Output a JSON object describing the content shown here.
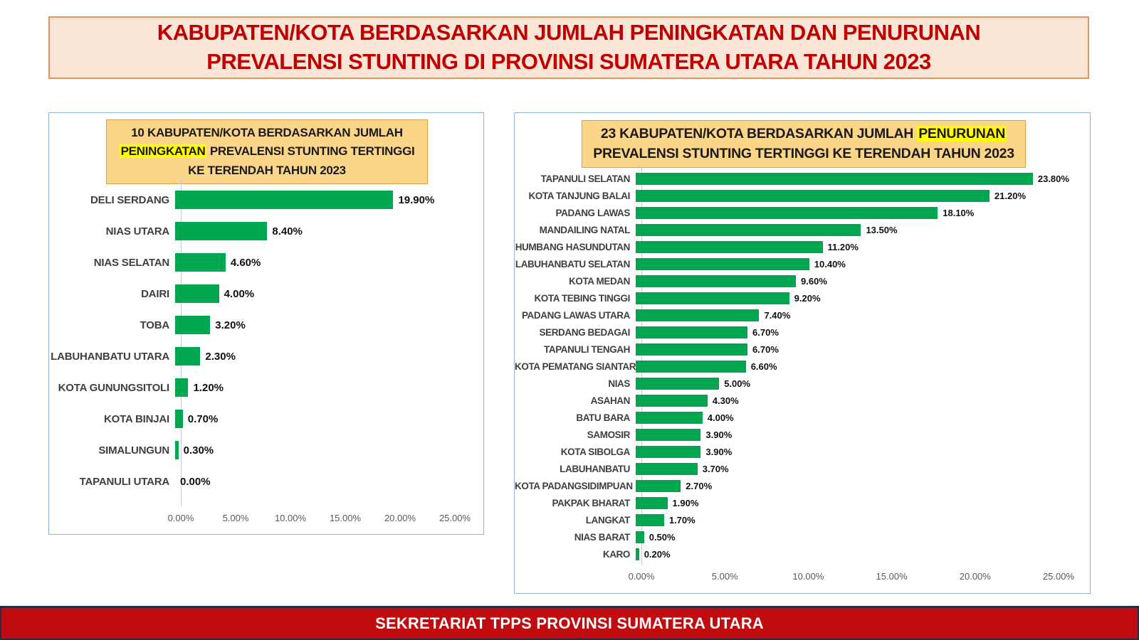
{
  "page": {
    "title": "KABUPATEN/KOTA BERDASARKAN JUMLAH PENINGKATAN DAN PENURUNAN PREVALENSI STUNTING DI PROVINSI SUMATERA UTARA TAHUN 2023",
    "footer": "SEKRETARIAT TPPS PROVINSI SUMATERA UTARA"
  },
  "colors": {
    "bar_green": "#00A650",
    "main_title_text": "#C00000",
    "main_title_bg": "#FBE5D6",
    "main_title_border": "#E0945B",
    "chart_title_bg": "#FBD588",
    "chart_title_border": "#D79E4A",
    "highlight_yellow": "#FFFF00",
    "panel_border": "#8EB4DC",
    "footer_bg": "#C00B0F",
    "footer_border": "#252C48",
    "footer_text": "#FFFFFF"
  },
  "chart_data": [
    {
      "type": "bar",
      "orientation": "horizontal",
      "title": "10 KABUPATEN/KOTA BERDASARKAN JUMLAH PENINGKATAN PREVALENSI STUNTING TERTINGGI KE TERENDAH TAHUN 2023",
      "title_parts": {
        "pre": "10 KABUPATEN/KOTA BERDASARKAN JUMLAH ",
        "highlight": "PENINGKATAN",
        "post": " PREVALENSI STUNTING TERTINGGI KE TERENDAH TAHUN 2023"
      },
      "categories": [
        "DELI SERDANG",
        "NIAS UTARA",
        "NIAS SELATAN",
        "DAIRI",
        "TOBA",
        "LABUHANBATU UTARA",
        "KOTA GUNUNGSITOLI",
        "KOTA BINJAI",
        "SIMALUNGUN",
        "TAPANULI UTARA"
      ],
      "values": [
        19.9,
        8.4,
        4.6,
        4.0,
        3.2,
        2.3,
        1.2,
        0.7,
        0.3,
        0.0
      ],
      "value_labels": [
        "19.90%",
        "8.40%",
        "4.60%",
        "4.00%",
        "3.20%",
        "2.30%",
        "1.20%",
        "0.70%",
        "0.30%",
        "0.00%"
      ],
      "xlim": [
        0,
        25
      ],
      "x_ticks": [
        "0.00%",
        "5.00%",
        "10.00%",
        "15.00%",
        "20.00%",
        "25.00%"
      ],
      "grid": false,
      "legend_position": "none",
      "bar_color": "#00A650"
    },
    {
      "type": "bar",
      "orientation": "horizontal",
      "title": "23 KABUPATEN/KOTA BERDASARKAN JUMLAH PENURUNAN PREVALENSI STUNTING TERTINGGI KE TERENDAH TAHUN 2023",
      "title_parts": {
        "pre": "23 KABUPATEN/KOTA BERDASARKAN JUMLAH ",
        "highlight": "PENURUNAN",
        "post": " PREVALENSI STUNTING TERTINGGI KE TERENDAH TAHUN 2023"
      },
      "categories": [
        "TAPANULI SELATAN",
        "KOTA TANJUNG BALAI",
        "PADANG LAWAS",
        "MANDAILING NATAL",
        "HUMBANG HASUNDUTAN",
        "LABUHANBATU SELATAN",
        "KOTA MEDAN",
        "KOTA TEBING TINGGI",
        "PADANG LAWAS UTARA",
        "SERDANG BEDAGAI",
        "TAPANULI TENGAH",
        "KOTA PEMATANG SIANTAR",
        "NIAS",
        "ASAHAN",
        "BATU BARA",
        "SAMOSIR",
        "KOTA SIBOLGA",
        "LABUHANBATU",
        "KOTA PADANGSIDIMPUAN",
        "PAKPAK BHARAT",
        "LANGKAT",
        "NIAS BARAT",
        "KARO"
      ],
      "values": [
        23.8,
        21.2,
        18.1,
        13.5,
        11.2,
        10.4,
        9.6,
        9.2,
        7.4,
        6.7,
        6.7,
        6.6,
        5.0,
        4.3,
        4.0,
        3.9,
        3.9,
        3.7,
        2.7,
        1.9,
        1.7,
        0.5,
        0.2
      ],
      "value_labels": [
        "23.80%",
        "21.20%",
        "18.10%",
        "13.50%",
        "11.20%",
        "10.40%",
        "9.60%",
        "9.20%",
        "7.40%",
        "6.70%",
        "6.70%",
        "6.60%",
        "5.00%",
        "4.30%",
        "4.00%",
        "3.90%",
        "3.90%",
        "3.70%",
        "2.70%",
        "1.90%",
        "1.70%",
        "0.50%",
        "0.20%"
      ],
      "xlim": [
        0,
        25
      ],
      "x_ticks": [
        "0.00%",
        "5.00%",
        "10.00%",
        "15.00%",
        "20.00%",
        "25.00%"
      ],
      "grid": false,
      "legend_position": "none",
      "bar_color": "#00A650"
    }
  ]
}
